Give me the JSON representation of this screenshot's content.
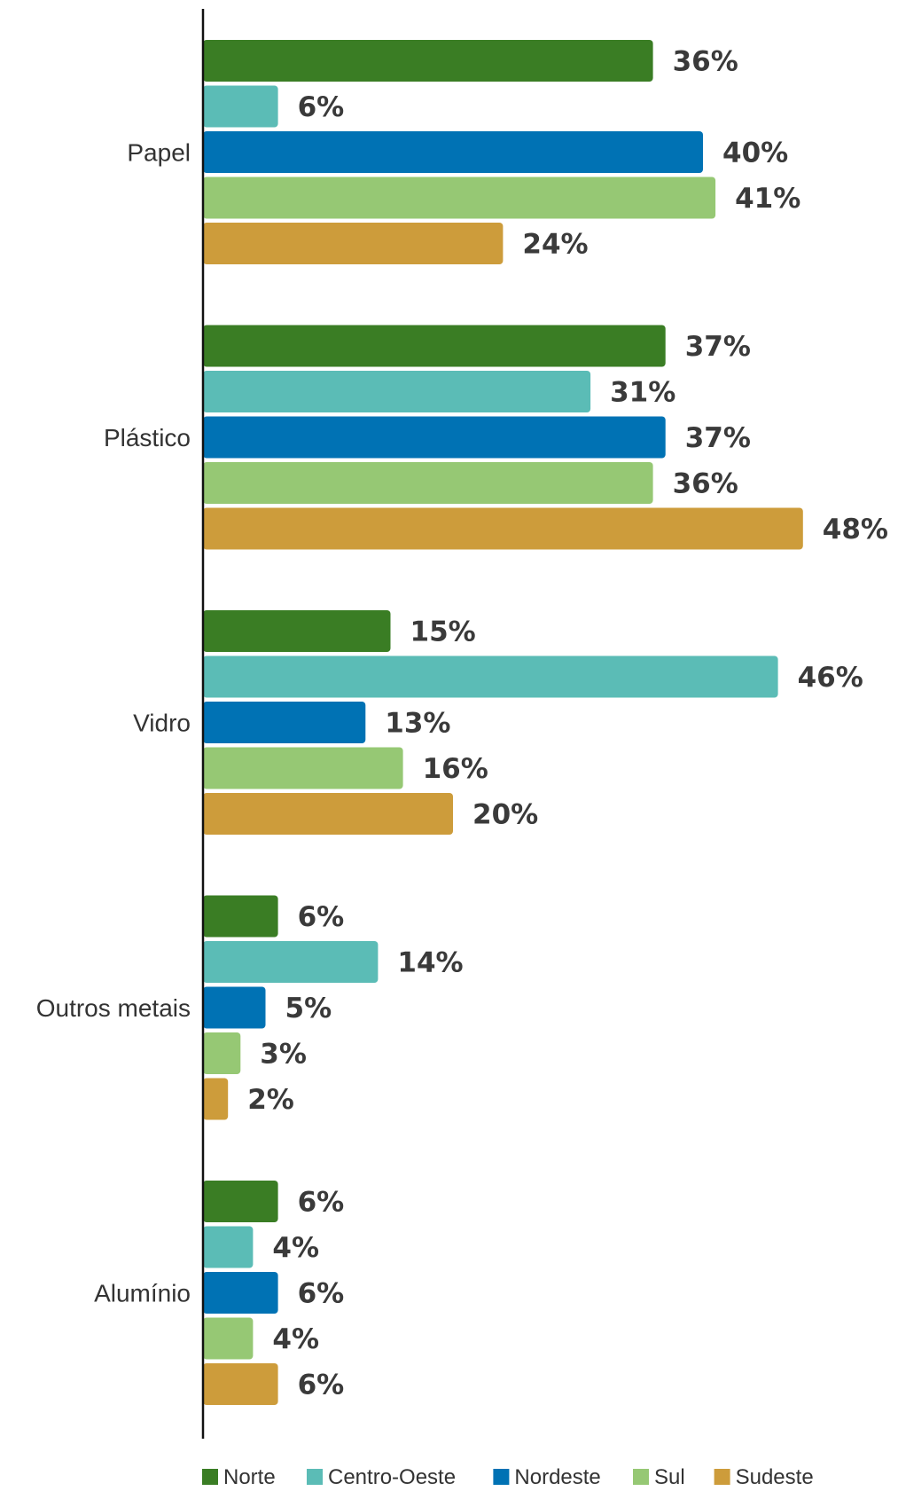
{
  "chart_data": {
    "type": "bar",
    "orientation": "horizontal",
    "categories": [
      "Papel",
      "Plástico",
      "Vidro",
      "Outros metais",
      "Alumínio"
    ],
    "series": [
      {
        "name": "Norte",
        "color": "#3a7d24",
        "values": [
          36,
          37,
          15,
          6,
          6
        ],
        "labels": [
          "36%",
          "37%",
          "15%",
          "6%",
          "6%"
        ]
      },
      {
        "name": "Centro-Oeste",
        "color": "#5bbcb6",
        "values": [
          6,
          31,
          46,
          14,
          4
        ],
        "labels": [
          "6%",
          "31%",
          "46%",
          "14%",
          "4%"
        ]
      },
      {
        "name": "Nordeste",
        "color": "#0072b4",
        "values": [
          40,
          37,
          13,
          5,
          6
        ],
        "labels": [
          "40%",
          "37%",
          "13%",
          "5%",
          "6%"
        ]
      },
      {
        "name": "Sul",
        "color": "#96c874",
        "values": [
          41,
          36,
          16,
          3,
          4
        ],
        "labels": [
          "41%",
          "36%",
          "16%",
          "3%",
          "4%"
        ]
      },
      {
        "name": "Sudeste",
        "color": "#cd9c3b",
        "values": [
          24,
          48,
          20,
          2,
          6
        ],
        "labels": [
          "24%",
          "48%",
          "20%",
          "2%",
          "6%"
        ]
      }
    ],
    "value_unit": "%",
    "legend_position": "bottom",
    "grid": false,
    "xlim": [
      0,
      50
    ]
  }
}
